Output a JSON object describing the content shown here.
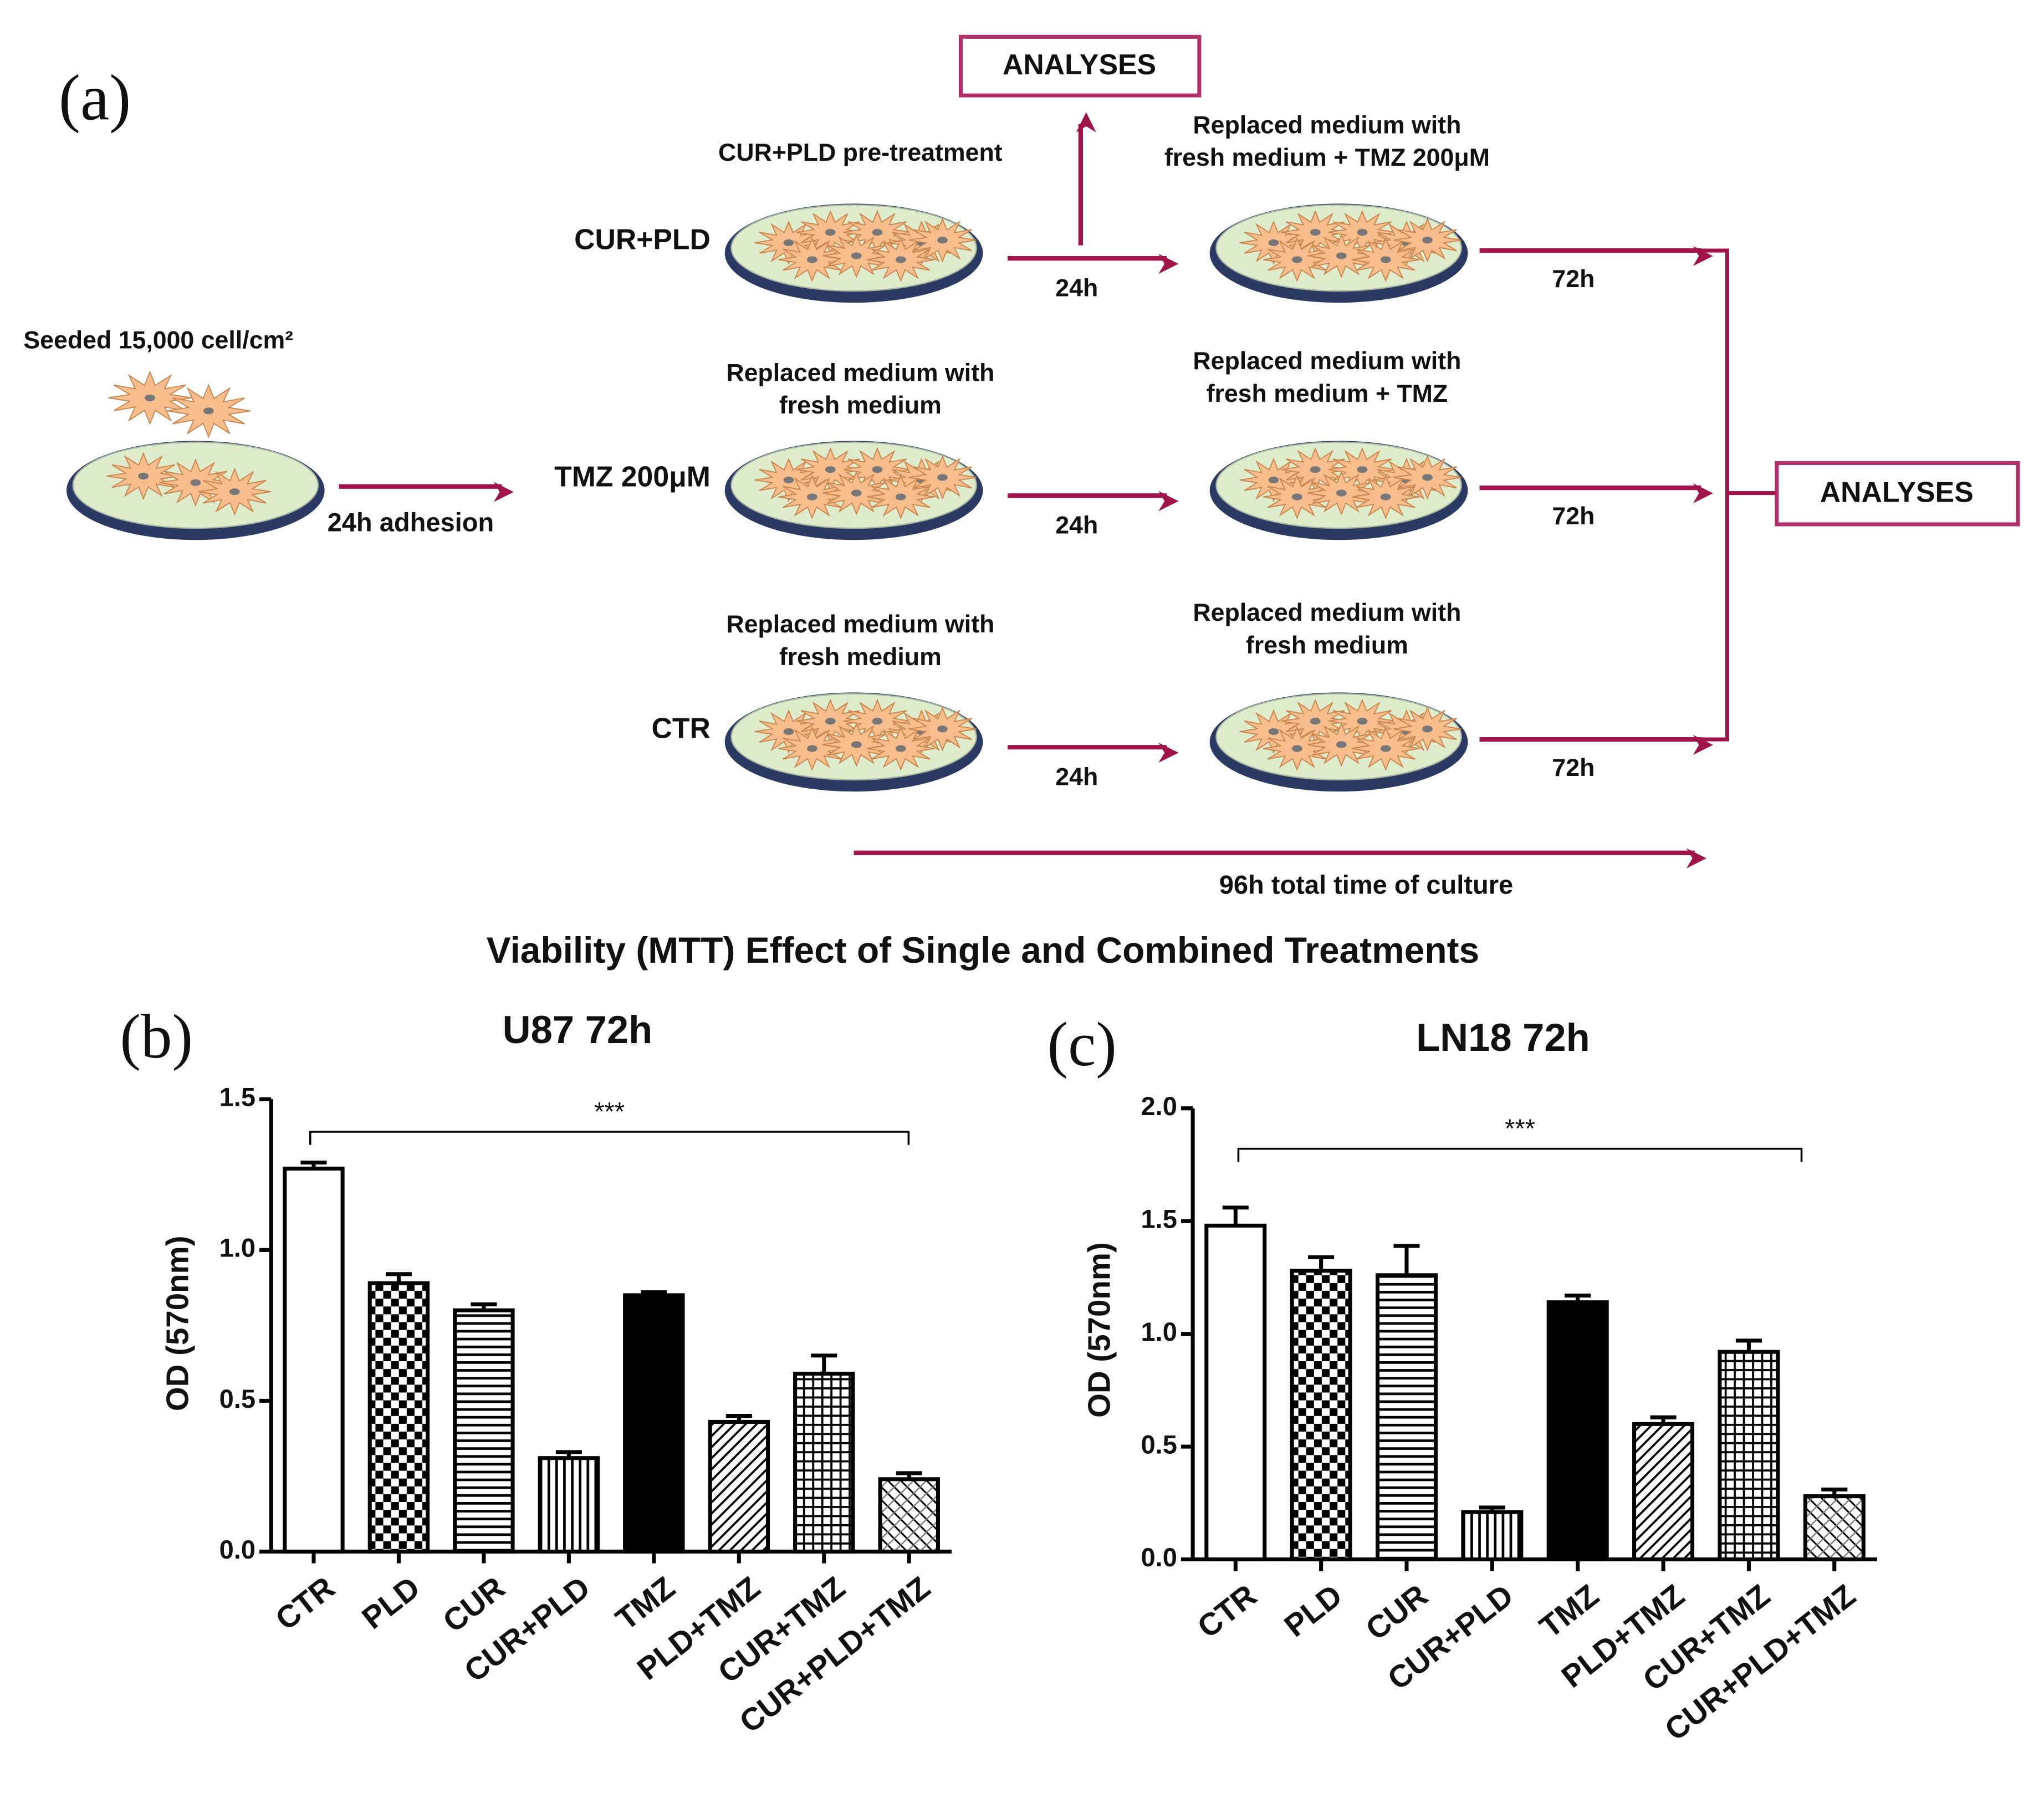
{
  "figure_title": "Viability (MTT) Effect of Single and Combined Treatments",
  "diagram": {
    "panel_label": "(a)",
    "seed_label": "Seeded 15,000 cell/cm²",
    "adhesion": "24h adhesion",
    "rows": [
      {
        "label": "CUR+PLD",
        "step1": [
          "CUR+PLD pre-treatment"
        ],
        "t1": "24h",
        "step2": [
          "Replaced medium with",
          "fresh medium + TMZ 200μM"
        ],
        "t2": "72h"
      },
      {
        "label": "TMZ 200μM",
        "step1": [
          "Replaced medium with",
          "fresh medium"
        ],
        "t1": "24h",
        "step2": [
          "Replaced medium with",
          "fresh medium + TMZ"
        ],
        "t2": "72h"
      },
      {
        "label": "CTR",
        "step1": [
          "Replaced medium with",
          "fresh medium"
        ],
        "t1": "24h",
        "step2": [
          "Replaced medium with",
          "fresh medium"
        ],
        "t2": "72h"
      }
    ],
    "analyses_top": "ANALYSES",
    "analyses_right": "ANALYSES",
    "total": "96h total time of culture"
  },
  "chart_data": [
    {
      "type": "bar",
      "panel_label": "(b)",
      "title": "U87 72h",
      "y_label": "OD (570nm)",
      "annotation": "***",
      "categories": [
        "CTR",
        "PLD",
        "CUR",
        "CUR+PLD",
        "TMZ",
        "PLD+TMZ",
        "CUR+TMZ",
        "CUR+PLD+TMZ"
      ],
      "values": [
        1.27,
        0.89,
        0.8,
        0.31,
        0.85,
        0.43,
        0.59,
        0.24
      ],
      "errors": [
        0.02,
        0.03,
        0.02,
        0.02,
        0.01,
        0.02,
        0.06,
        0.02
      ],
      "patterns": [
        "none",
        "checker",
        "hlines",
        "vlines",
        "solid",
        "diag",
        "grid",
        "diag2"
      ],
      "color": "#000000",
      "ylim": [
        0,
        1.5
      ],
      "yticks": [
        {
          "value": 0,
          "label": "0.0"
        },
        0.5,
        {
          "value": 1,
          "label": "1.0"
        },
        1.5
      ]
    },
    {
      "type": "bar",
      "panel_label": "(c)",
      "title": "LN18 72h",
      "y_label": "OD (570nm)",
      "annotation": "***",
      "categories": [
        "CTR",
        "PLD",
        "CUR",
        "CUR+PLD",
        "TMZ",
        "PLD+TMZ",
        "CUR+TMZ",
        "CUR+PLD+TMZ"
      ],
      "values": [
        1.48,
        1.28,
        1.26,
        0.21,
        1.14,
        0.6,
        0.92,
        0.28
      ],
      "errors": [
        0.08,
        0.06,
        0.13,
        0.02,
        0.03,
        0.03,
        0.05,
        0.03
      ],
      "patterns": [
        "none",
        "checker",
        "hlines",
        "vlines",
        "solid",
        "diag",
        "grid",
        "diag2"
      ],
      "color": "#000000",
      "ylim": [
        0,
        2
      ],
      "yticks": [
        {
          "value": 0,
          "label": "0.0"
        },
        0.5,
        {
          "value": 1,
          "label": "1.0"
        },
        1.5,
        {
          "value": 2,
          "label": "2.0"
        }
      ]
    }
  ]
}
